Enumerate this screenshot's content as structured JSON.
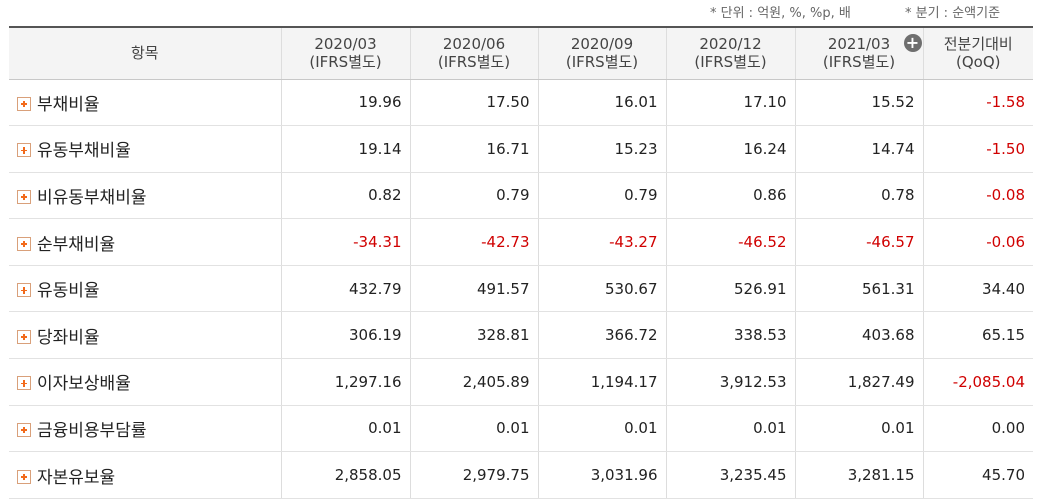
{
  "notes": {
    "unit": "* 단위 : 억원, %, %p, 배",
    "basis": "* 분기 : 순액기준"
  },
  "header": {
    "item": "항목",
    "periods": [
      {
        "date": "2020/03",
        "basis": "(IFRS별도)"
      },
      {
        "date": "2020/06",
        "basis": "(IFRS별도)"
      },
      {
        "date": "2020/09",
        "basis": "(IFRS별도)"
      },
      {
        "date": "2020/12",
        "basis": "(IFRS별도)"
      },
      {
        "date": "2021/03",
        "basis": "(IFRS별도)"
      }
    ],
    "qoq_line1": "전분기대비",
    "qoq_line2": "(QoQ)",
    "expand_icon": "circle-plus-icon"
  },
  "rows": [
    {
      "label": "부채비율",
      "values": [
        "19.96",
        "17.50",
        "16.01",
        "17.10",
        "15.52",
        "-1.58"
      ]
    },
    {
      "label": "유동부채비율",
      "values": [
        "19.14",
        "16.71",
        "15.23",
        "16.24",
        "14.74",
        "-1.50"
      ]
    },
    {
      "label": "비유동부채비율",
      "values": [
        "0.82",
        "0.79",
        "0.79",
        "0.86",
        "0.78",
        "-0.08"
      ]
    },
    {
      "label": "순부채비율",
      "values": [
        "-34.31",
        "-42.73",
        "-43.27",
        "-46.52",
        "-46.57",
        "-0.06"
      ]
    },
    {
      "label": "유동비율",
      "values": [
        "432.79",
        "491.57",
        "530.67",
        "526.91",
        "561.31",
        "34.40"
      ]
    },
    {
      "label": "당좌비율",
      "values": [
        "306.19",
        "328.81",
        "366.72",
        "338.53",
        "403.68",
        "65.15"
      ]
    },
    {
      "label": "이자보상배율",
      "values": [
        "1,297.16",
        "2,405.89",
        "1,194.17",
        "3,912.53",
        "1,827.49",
        "-2,085.04"
      ]
    },
    {
      "label": "금융비용부담률",
      "values": [
        "0.01",
        "0.01",
        "0.01",
        "0.01",
        "0.01",
        "0.00"
      ]
    },
    {
      "label": "자본유보율",
      "values": [
        "2,858.05",
        "2,979.75",
        "3,031.96",
        "3,235.45",
        "3,281.15",
        "45.70"
      ]
    }
  ],
  "colors": {
    "negative": "#d00000",
    "expand_icon": "#f26a1b",
    "header_bg": "#f4f4f4"
  }
}
